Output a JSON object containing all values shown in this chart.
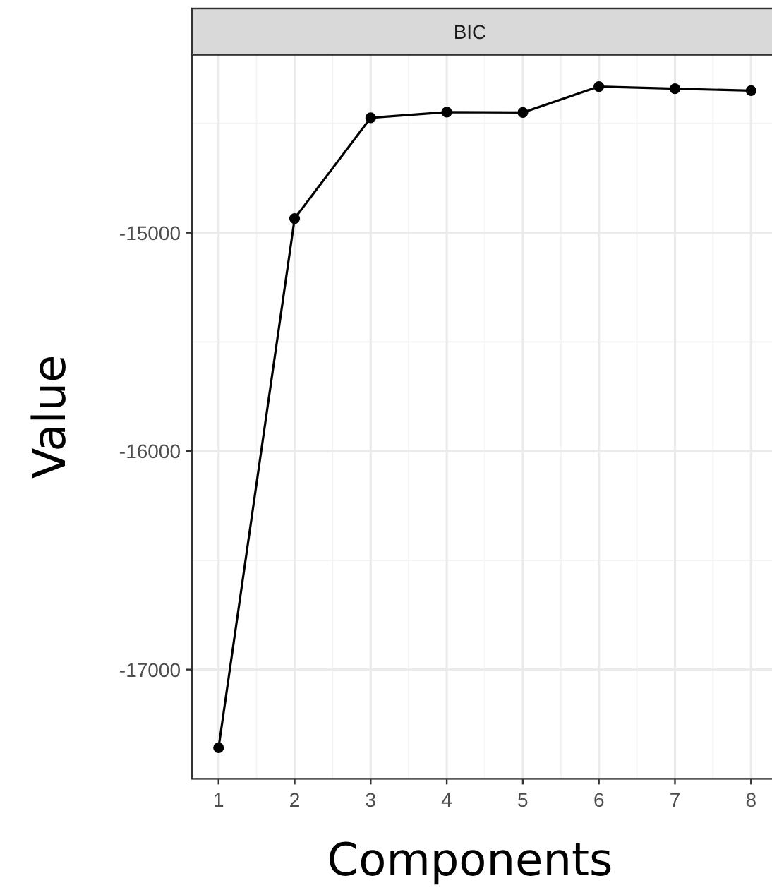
{
  "chart_data": {
    "type": "line",
    "title": "BIC",
    "xlabel": "Components",
    "ylabel": "Value",
    "x": [
      1,
      2,
      3,
      4,
      5,
      6,
      7,
      8
    ],
    "series": [
      {
        "color": "#000000",
        "values": [
          -17358,
          -14935,
          -14474,
          -14448,
          -14450,
          -14331,
          -14341,
          -14350
        ]
      }
    ],
    "xlim": [
      0.65,
      8.35
    ],
    "ylim": [
      -17500,
      -14185
    ],
    "xticks": [
      1,
      2,
      3,
      4,
      5,
      6,
      7,
      8
    ],
    "yticks": [
      -17000,
      -16000,
      -15000
    ],
    "grid": true,
    "marker": "circle",
    "line_style": "solid"
  }
}
